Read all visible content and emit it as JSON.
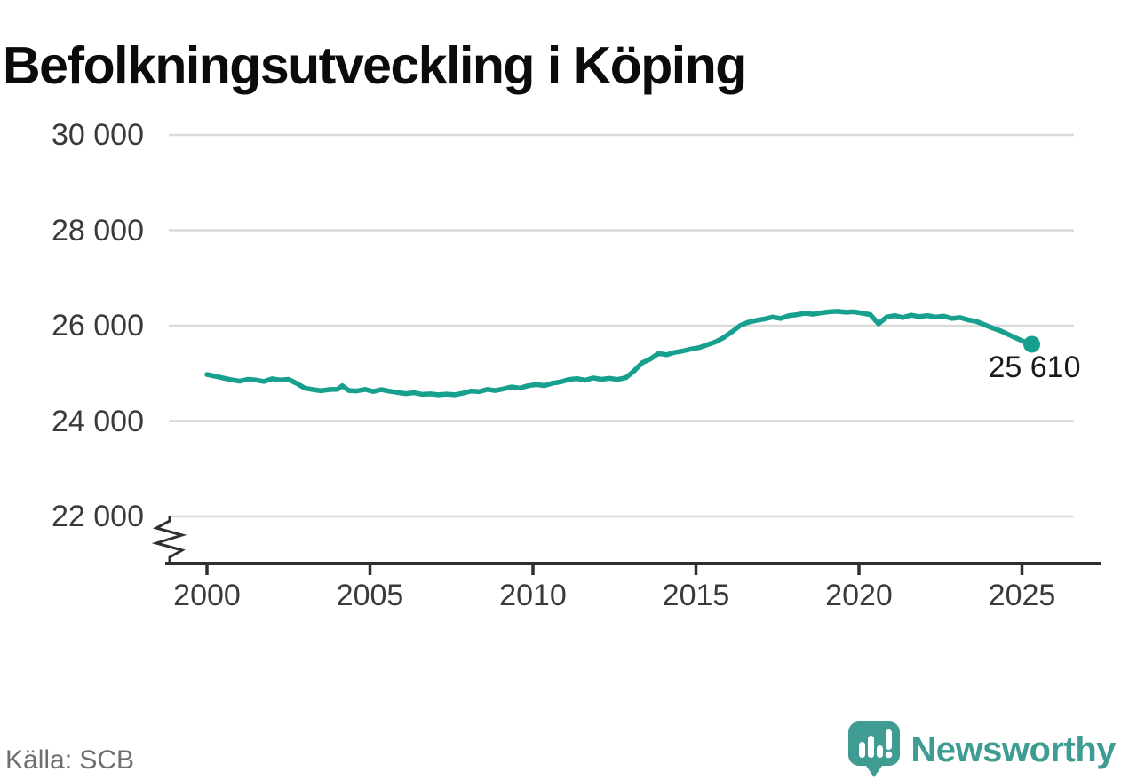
{
  "title": "Befolkningsutveckling i Köping",
  "source": "Källa: SCB",
  "branding": {
    "name": "Newsworthy",
    "icon": "newsworthy-speech-bubble-chart-icon",
    "color": "#3E9C92"
  },
  "colors": {
    "background": "#FFFFFF",
    "line": "#17A08E",
    "grid": "#DADADA",
    "axis": "#2F2F2F",
    "tick_label": "#3A3A3A",
    "title": "#0B0B0B",
    "value_label": "#1A1A1A",
    "source": "#6E6E6E"
  },
  "chart_data": {
    "type": "line",
    "title": "Befolkningsutveckling i Köping",
    "xlabel": "",
    "ylabel": "",
    "grid": "horizontal",
    "axis_break": true,
    "legend": "none",
    "xlim": [
      1998.8,
      2027.4
    ],
    "ylim": [
      21000,
      30600
    ],
    "x_ticks": [
      2000,
      2005,
      2010,
      2015,
      2020,
      2025
    ],
    "x_tick_labels": [
      "2000",
      "2005",
      "2010",
      "2015",
      "2020",
      "2025"
    ],
    "y_ticks": [
      30000,
      28000,
      26000,
      24000,
      22000
    ],
    "y_tick_labels": [
      "30 000",
      "28 000",
      "26 000",
      "24 000",
      "22 000"
    ],
    "end_label": "25 610",
    "end_value": 25610,
    "x": [
      2000.0,
      2000.25,
      2000.5,
      2000.75,
      2001.0,
      2001.25,
      2001.5,
      2001.75,
      2002.0,
      2002.25,
      2002.5,
      2002.75,
      2003.0,
      2003.25,
      2003.5,
      2003.75,
      2004.0,
      2004.15,
      2004.35,
      2004.6,
      2004.85,
      2005.1,
      2005.35,
      2005.6,
      2005.85,
      2006.1,
      2006.35,
      2006.6,
      2006.85,
      2007.1,
      2007.35,
      2007.6,
      2007.85,
      2008.1,
      2008.35,
      2008.6,
      2008.85,
      2009.1,
      2009.35,
      2009.6,
      2009.85,
      2010.1,
      2010.35,
      2010.6,
      2010.85,
      2011.1,
      2011.35,
      2011.6,
      2011.85,
      2012.1,
      2012.35,
      2012.6,
      2012.85,
      2013.1,
      2013.35,
      2013.6,
      2013.85,
      2014.1,
      2014.35,
      2014.6,
      2014.85,
      2015.1,
      2015.35,
      2015.6,
      2015.85,
      2016.1,
      2016.35,
      2016.6,
      2016.85,
      2017.1,
      2017.35,
      2017.6,
      2017.85,
      2018.1,
      2018.35,
      2018.6,
      2018.85,
      2019.1,
      2019.35,
      2019.6,
      2019.85,
      2020.1,
      2020.35,
      2020.6,
      2020.85,
      2021.1,
      2021.35,
      2021.6,
      2021.85,
      2022.1,
      2022.35,
      2022.6,
      2022.85,
      2023.1,
      2023.35,
      2023.6,
      2023.85,
      2024.1,
      2024.35,
      2024.6,
      2024.85,
      2025.05,
      2025.3
    ],
    "series": [
      {
        "name": "Befolkning",
        "values": [
          24975,
          24940,
          24900,
          24865,
          24835,
          24875,
          24860,
          24830,
          24885,
          24860,
          24875,
          24790,
          24690,
          24660,
          24635,
          24660,
          24665,
          24740,
          24640,
          24630,
          24665,
          24620,
          24660,
          24625,
          24600,
          24575,
          24595,
          24560,
          24570,
          24550,
          24565,
          24550,
          24585,
          24630,
          24615,
          24665,
          24640,
          24675,
          24715,
          24690,
          24740,
          24765,
          24745,
          24795,
          24820,
          24870,
          24890,
          24855,
          24905,
          24875,
          24895,
          24870,
          24910,
          25050,
          25220,
          25300,
          25420,
          25390,
          25440,
          25470,
          25510,
          25540,
          25600,
          25660,
          25750,
          25870,
          26000,
          26070,
          26110,
          26140,
          26180,
          26150,
          26210,
          26230,
          26260,
          26240,
          26270,
          26290,
          26300,
          26280,
          26290,
          26260,
          26230,
          26040,
          26180,
          26210,
          26170,
          26220,
          26190,
          26210,
          26180,
          26200,
          26150,
          26170,
          26120,
          26090,
          26020,
          25950,
          25890,
          25810,
          25730,
          25670,
          25610
        ]
      }
    ]
  }
}
